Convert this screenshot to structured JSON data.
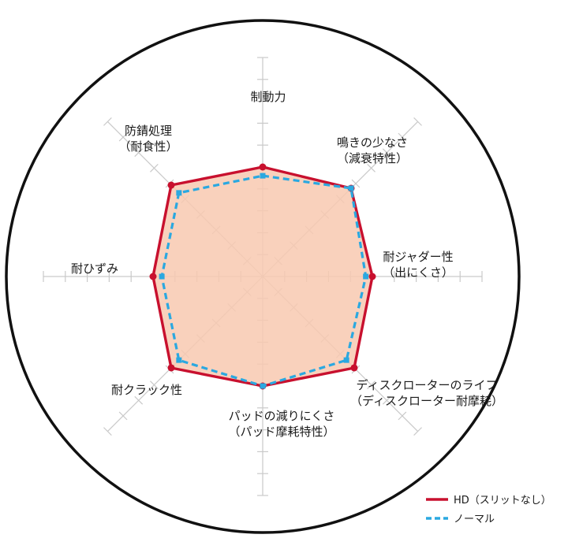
{
  "chart_data": {
    "type": "radar",
    "axes": [
      {
        "label_lines": [
          "制動力"
        ]
      },
      {
        "label_lines": [
          "鳴きの少なさ",
          "（減衰特性）"
        ]
      },
      {
        "label_lines": [
          "耐ジャダー性",
          "（出にくさ）"
        ]
      },
      {
        "label_lines": [
          "ディスクローターのライフ",
          "（ディスクローター耐摩耗）"
        ]
      },
      {
        "label_lines": [
          "パッドの減りにくさ",
          "（パッド摩耗特性）"
        ]
      },
      {
        "label_lines": [
          "耐クラック性"
        ]
      },
      {
        "label_lines": [
          "耐ひずみ"
        ]
      },
      {
        "label_lines": [
          "防錆処理",
          "（耐食性）"
        ]
      }
    ],
    "scale": {
      "max": 10,
      "ticks": 10
    },
    "series": [
      {
        "name": "HD（スリットなし）",
        "color": "#c8102e",
        "style": "solid",
        "fill": "#f8c9b0",
        "values": [
          5.0,
          5.7,
          5.0,
          5.9,
          5.0,
          5.9,
          5.0,
          5.9
        ]
      },
      {
        "name": "ノーマル",
        "color": "#2aa8e0",
        "style": "dashed",
        "values": [
          4.6,
          5.7,
          4.7,
          5.4,
          5.0,
          5.4,
          4.6,
          5.4
        ]
      }
    ],
    "legend": "bottom-right",
    "grid": true
  }
}
